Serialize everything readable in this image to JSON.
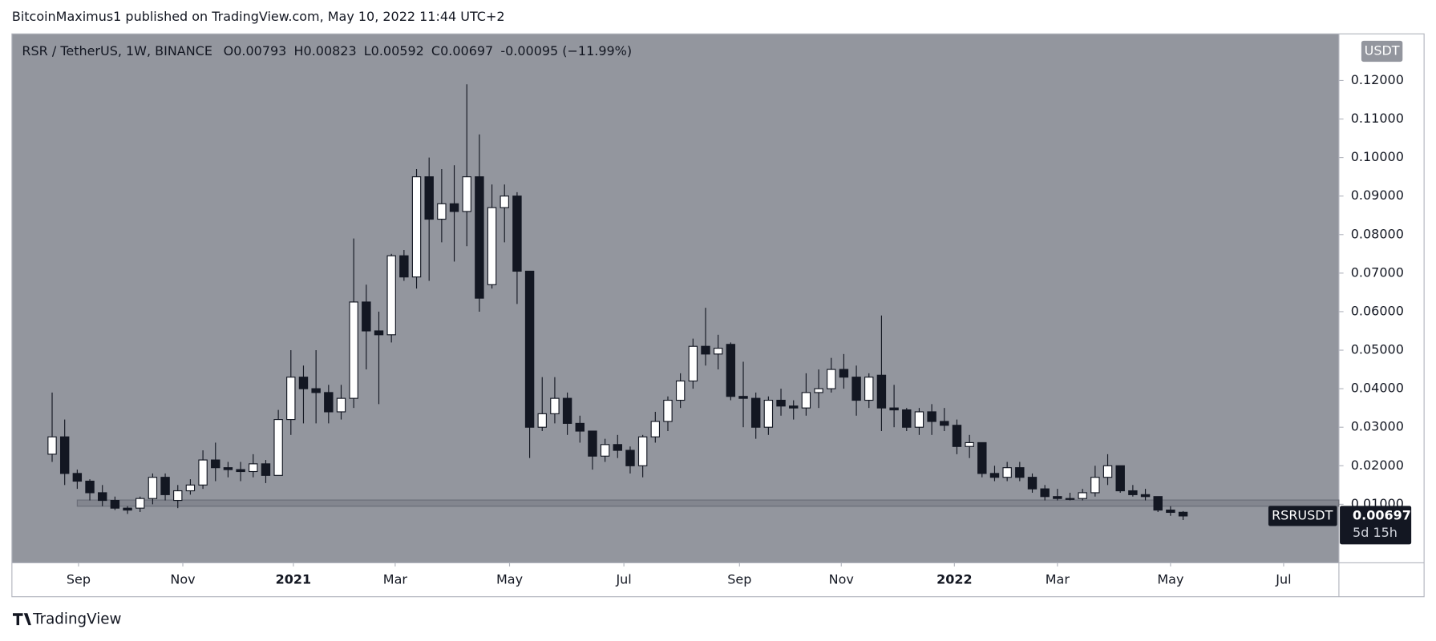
{
  "header": "BitcoinMaximus1 published on TradingView.com, May 10, 2022 11:44 UTC+2",
  "footer": "TradingView",
  "chart_data": {
    "type": "candlestick",
    "title": "RSR / TetherUS, 1W, BINANCE",
    "ohlc_labels": [
      "O",
      "H",
      "L",
      "C"
    ],
    "change": "-0.00095 (−11.99%)",
    "symbol": "RSRUSDT",
    "countdown": "5d 15h",
    "currency": "USDT",
    "up_color": "#ffffff",
    "down_color": "#131722",
    "background": "#93969e",
    "open": [
      0.023,
      0.0275,
      0.018,
      0.016,
      0.013,
      0.011,
      0.009,
      0.009,
      0.0115,
      0.017,
      0.011,
      0.0135,
      0.015,
      0.0215,
      0.0195,
      0.019,
      0.0185,
      0.0205,
      0.0175,
      0.032,
      0.043,
      0.04,
      0.039,
      0.034,
      0.0375,
      0.0625,
      0.055,
      0.054,
      0.0745,
      0.069,
      0.095,
      0.084,
      0.088,
      0.086,
      0.095,
      0.067,
      0.087,
      0.09,
      0.0705,
      0.03,
      0.0335,
      0.0375,
      0.031,
      0.029,
      0.0225,
      0.0255,
      0.024,
      0.02,
      0.0275,
      0.0315,
      0.037,
      0.042,
      0.051,
      0.049,
      0.0515,
      0.038,
      0.0375,
      0.03,
      0.037,
      0.0355,
      0.035,
      0.039,
      0.04,
      0.045,
      0.043,
      0.037,
      0.0435,
      0.035,
      0.0345,
      0.03,
      0.034,
      0.0315,
      0.0305,
      0.025,
      0.026,
      0.018,
      0.017,
      0.0195,
      0.017,
      0.014,
      0.012,
      0.0115,
      0.0115,
      0.013,
      0.017,
      0.02,
      0.0135,
      0.0125,
      0.012,
      0.0085,
      0.00793
    ],
    "high": [
      0.039,
      0.032,
      0.019,
      0.0165,
      0.015,
      0.012,
      0.0095,
      0.012,
      0.018,
      0.018,
      0.015,
      0.0165,
      0.024,
      0.026,
      0.021,
      0.021,
      0.023,
      0.0215,
      0.0345,
      0.05,
      0.046,
      0.05,
      0.041,
      0.041,
      0.079,
      0.067,
      0.06,
      0.075,
      0.076,
      0.097,
      0.1,
      0.097,
      0.098,
      0.119,
      0.106,
      0.093,
      0.093,
      0.091,
      0.0705,
      0.043,
      0.043,
      0.039,
      0.033,
      0.029,
      0.027,
      0.028,
      0.025,
      0.028,
      0.034,
      0.038,
      0.044,
      0.053,
      0.061,
      0.054,
      0.052,
      0.047,
      0.039,
      0.038,
      0.04,
      0.037,
      0.044,
      0.045,
      0.048,
      0.049,
      0.046,
      0.044,
      0.059,
      0.041,
      0.035,
      0.035,
      0.036,
      0.035,
      0.032,
      0.028,
      0.026,
      0.02,
      0.021,
      0.021,
      0.018,
      0.015,
      0.014,
      0.013,
      0.014,
      0.02,
      0.023,
      0.02,
      0.015,
      0.014,
      0.012,
      0.0095,
      0.00823
    ],
    "low": [
      0.021,
      0.015,
      0.014,
      0.011,
      0.0095,
      0.0085,
      0.0075,
      0.008,
      0.01,
      0.011,
      0.009,
      0.0125,
      0.014,
      0.016,
      0.017,
      0.016,
      0.017,
      0.0155,
      0.0175,
      0.028,
      0.031,
      0.031,
      0.031,
      0.032,
      0.035,
      0.045,
      0.036,
      0.052,
      0.068,
      0.066,
      0.068,
      0.078,
      0.073,
      0.077,
      0.06,
      0.066,
      0.078,
      0.062,
      0.022,
      0.029,
      0.031,
      0.028,
      0.026,
      0.019,
      0.021,
      0.022,
      0.018,
      0.017,
      0.026,
      0.029,
      0.035,
      0.04,
      0.046,
      0.045,
      0.037,
      0.03,
      0.027,
      0.028,
      0.033,
      0.032,
      0.033,
      0.035,
      0.039,
      0.04,
      0.033,
      0.035,
      0.029,
      0.03,
      0.029,
      0.028,
      0.028,
      0.029,
      0.023,
      0.022,
      0.017,
      0.016,
      0.016,
      0.016,
      0.013,
      0.011,
      0.011,
      0.011,
      0.011,
      0.012,
      0.015,
      0.013,
      0.012,
      0.011,
      0.008,
      0.007,
      0.00592
    ],
    "close": [
      0.0275,
      0.018,
      0.016,
      0.013,
      0.011,
      0.009,
      0.0085,
      0.0115,
      0.017,
      0.0125,
      0.0135,
      0.015,
      0.0215,
      0.0195,
      0.019,
      0.0185,
      0.0205,
      0.0175,
      0.032,
      0.043,
      0.04,
      0.039,
      0.034,
      0.0375,
      0.0625,
      0.055,
      0.054,
      0.0745,
      0.069,
      0.095,
      0.084,
      0.088,
      0.086,
      0.095,
      0.0635,
      0.087,
      0.09,
      0.0705,
      0.03,
      0.0335,
      0.0375,
      0.031,
      0.029,
      0.0225,
      0.0255,
      0.024,
      0.02,
      0.0275,
      0.0315,
      0.037,
      0.042,
      0.051,
      0.049,
      0.0505,
      0.038,
      0.0375,
      0.03,
      0.037,
      0.0355,
      0.035,
      0.039,
      0.04,
      0.045,
      0.043,
      0.037,
      0.043,
      0.035,
      0.0345,
      0.03,
      0.034,
      0.0315,
      0.0305,
      0.025,
      0.026,
      0.018,
      0.017,
      0.0195,
      0.017,
      0.014,
      0.012,
      0.0115,
      0.0115,
      0.013,
      0.017,
      0.02,
      0.0135,
      0.0125,
      0.012,
      0.0085,
      0.0079,
      0.00697
    ],
    "support_zone": [
      0.0095,
      0.0111
    ],
    "ylim": [
      -0.0052,
      0.1321
    ],
    "yticks": [
      {
        "value": 0.01,
        "label": "0.01000"
      },
      {
        "value": 0.02,
        "label": "0.02000"
      },
      {
        "value": 0.03,
        "label": "0.03000"
      },
      {
        "value": 0.04,
        "label": "0.04000"
      },
      {
        "value": 0.05,
        "label": "0.05000"
      },
      {
        "value": 0.06,
        "label": "0.06000"
      },
      {
        "value": 0.07,
        "label": "0.07000"
      },
      {
        "value": 0.08,
        "label": "0.08000"
      },
      {
        "value": 0.09,
        "label": "0.09000"
      },
      {
        "value": 0.1,
        "label": "0.10000"
      },
      {
        "value": 0.11,
        "label": "0.11000"
      },
      {
        "value": 0.12,
        "label": "0.12000"
      }
    ],
    "xlim": [
      -3.2,
      102.4
    ],
    "xticks": [
      {
        "value": 2.1,
        "label": "Sep"
      },
      {
        "value": 10.4,
        "label": "Nov"
      },
      {
        "value": 19.2,
        "label": "2021"
      },
      {
        "value": 27.3,
        "label": "Mar"
      },
      {
        "value": 36.4,
        "label": "May"
      },
      {
        "value": 45.5,
        "label": "Jul"
      },
      {
        "value": 54.7,
        "label": "Sep"
      },
      {
        "value": 62.8,
        "label": "Nov"
      },
      {
        "value": 71.8,
        "label": "2022"
      },
      {
        "value": 80.0,
        "label": "Mar"
      },
      {
        "value": 89.0,
        "label": "May"
      },
      {
        "value": 98.0,
        "label": "Jul"
      }
    ]
  }
}
